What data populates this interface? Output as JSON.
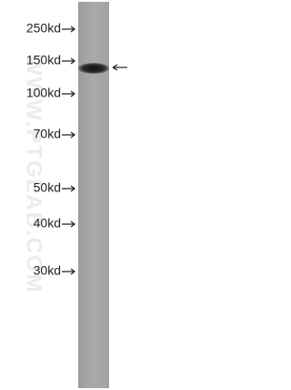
{
  "watermark": "WWW.PTGLAB.COM",
  "markers": [
    "250kd",
    "150kd",
    "100kd",
    "70kd",
    "50kd",
    "40kd",
    "30kd"
  ]
}
